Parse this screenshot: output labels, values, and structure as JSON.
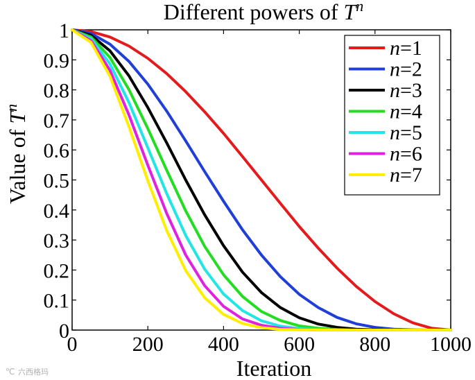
{
  "chart_data": {
    "type": "line",
    "title_prefix": "Different powers of ",
    "title_var": "T",
    "title_exp": "n",
    "xlabel": "Iteration",
    "ylabel_prefix": "Value of ",
    "ylabel_var": "T",
    "ylabel_exp": "n",
    "xlim": [
      0,
      1000
    ],
    "ylim": [
      0,
      1
    ],
    "xticks": [
      0,
      200,
      400,
      600,
      800,
      1000
    ],
    "xtick_labels": [
      "0",
      "200",
      "400",
      "600",
      "800",
      "1000"
    ],
    "yticks": [
      0,
      0.1,
      0.2,
      0.3,
      0.4,
      0.5,
      0.6,
      0.7,
      0.8,
      0.9,
      1
    ],
    "ytick_labels": [
      "0",
      "0.1",
      "0.2",
      "0.3",
      "0.4",
      "0.5",
      "0.6",
      "0.7",
      "0.8",
      "0.9",
      "1"
    ],
    "legend_position": "top-right",
    "x": [
      0,
      50,
      100,
      150,
      200,
      250,
      300,
      350,
      400,
      450,
      500,
      550,
      600,
      650,
      700,
      750,
      800,
      850,
      900,
      950,
      1000
    ],
    "series": [
      {
        "name": "n=1",
        "var": "n",
        "value": "=1",
        "color": "#e41a1c",
        "values": [
          1,
          0.994,
          0.976,
          0.946,
          0.905,
          0.854,
          0.794,
          0.727,
          0.655,
          0.578,
          0.5,
          0.422,
          0.345,
          0.273,
          0.206,
          0.146,
          0.095,
          0.054,
          0.024,
          0.006,
          0
        ]
      },
      {
        "name": "n=2",
        "var": "n",
        "value": "=2",
        "color": "#1f3fd8",
        "values": [
          1,
          0.988,
          0.952,
          0.895,
          0.819,
          0.729,
          0.63,
          0.528,
          0.429,
          0.334,
          0.25,
          0.178,
          0.119,
          0.075,
          0.042,
          0.021,
          0.009,
          0.003,
          0.001,
          0,
          0
        ]
      },
      {
        "name": "n=3",
        "var": "n",
        "value": "=3",
        "color": "#000000",
        "values": [
          1,
          0.982,
          0.93,
          0.847,
          0.741,
          0.623,
          0.5,
          0.384,
          0.281,
          0.193,
          0.125,
          0.075,
          0.041,
          0.02,
          0.009,
          0.003,
          0.001,
          0,
          0,
          0,
          0
        ]
      },
      {
        "name": "n=4",
        "var": "n",
        "value": "=4",
        "color": "#22dd22",
        "values": [
          1,
          0.976,
          0.908,
          0.801,
          0.671,
          0.532,
          0.397,
          0.279,
          0.184,
          0.112,
          0.062,
          0.032,
          0.014,
          0.006,
          0.002,
          0,
          0,
          0,
          0,
          0,
          0
        ]
      },
      {
        "name": "n=5",
        "var": "n",
        "value": "=5",
        "color": "#22e5e5",
        "values": [
          1,
          0.97,
          0.886,
          0.758,
          0.607,
          0.454,
          0.315,
          0.203,
          0.12,
          0.065,
          0.031,
          0.013,
          0.005,
          0.002,
          0,
          0,
          0,
          0,
          0,
          0,
          0
        ]
      },
      {
        "name": "n=6",
        "var": "n",
        "value": "=6",
        "color": "#e022e0",
        "values": [
          1,
          0.964,
          0.865,
          0.717,
          0.549,
          0.388,
          0.25,
          0.148,
          0.079,
          0.037,
          0.016,
          0.006,
          0.002,
          0,
          0,
          0,
          0,
          0,
          0,
          0,
          0
        ]
      },
      {
        "name": "n=7",
        "var": "n",
        "value": "=7",
        "color": "#ffee00",
        "values": [
          1,
          0.958,
          0.845,
          0.678,
          0.497,
          0.331,
          0.198,
          0.108,
          0.052,
          0.022,
          0.008,
          0.002,
          0.001,
          0,
          0,
          0,
          0,
          0,
          0,
          0,
          0
        ]
      }
    ]
  },
  "watermark": "六西格玛"
}
